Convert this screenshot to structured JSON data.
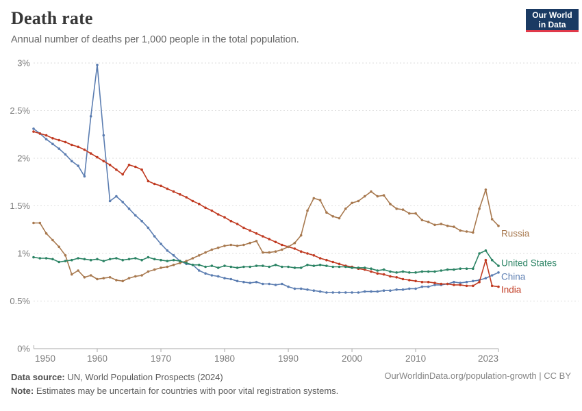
{
  "header": {
    "title": "Death rate",
    "subtitle": "Annual number of deaths per 1,000 people in the total population.",
    "logo_line1": "Our World",
    "logo_line2": "in Data"
  },
  "footer": {
    "source_bold": "Data source:",
    "source_rest": " UN, World Population Prospects (2024)",
    "note_bold": "Note:",
    "note_rest": " Estimates may be uncertain for countries with poor vital registration systems.",
    "credit": "OurWorldinData.org/population-growth | CC BY"
  },
  "colors": {
    "logo_bg": "#1A3A63",
    "logo_accent": "#E0394A",
    "grid": "#DCDCDC",
    "axis": "#A8A8A8",
    "tick_text": "#7C7C7C",
    "title_text": "#373737"
  },
  "chart_data": {
    "type": "line",
    "title": "Death rate",
    "xlabel": "",
    "ylabel": "",
    "x_range": [
      1950,
      2023
    ],
    "x_step": 1,
    "ylim": [
      0,
      3
    ],
    "grid": "horizontal dashed",
    "legend_position": "line-end labels",
    "y_ticks": [
      {
        "v": 0,
        "label": "0%"
      },
      {
        "v": 0.5,
        "label": "0.5%"
      },
      {
        "v": 1,
        "label": "1%"
      },
      {
        "v": 1.5,
        "label": "1.5%"
      },
      {
        "v": 2,
        "label": "2%"
      },
      {
        "v": 2.5,
        "label": "2.5%"
      },
      {
        "v": 3,
        "label": "3%"
      }
    ],
    "x_ticks": [
      {
        "year": 1950,
        "label": "1950"
      },
      {
        "year": 1960,
        "label": "1960"
      },
      {
        "year": 1970,
        "label": "1970"
      },
      {
        "year": 1980,
        "label": "1980"
      },
      {
        "year": 1990,
        "label": "1990"
      },
      {
        "year": 2000,
        "label": "2000"
      },
      {
        "year": 2010,
        "label": "2010"
      },
      {
        "year": 2023,
        "label": "2023"
      }
    ],
    "unit": "percent of population per year",
    "series": [
      {
        "name": "China",
        "color": "#5B7DB1",
        "label_value": 0.755,
        "values": [
          2.31,
          2.26,
          2.2,
          2.15,
          2.1,
          2.04,
          1.97,
          1.92,
          1.81,
          2.44,
          2.98,
          2.24,
          1.55,
          1.6,
          1.54,
          1.47,
          1.4,
          1.34,
          1.27,
          1.18,
          1.1,
          1.03,
          0.98,
          0.92,
          0.89,
          0.88,
          0.82,
          0.79,
          0.77,
          0.76,
          0.74,
          0.73,
          0.71,
          0.7,
          0.69,
          0.7,
          0.68,
          0.68,
          0.67,
          0.68,
          0.65,
          0.63,
          0.63,
          0.62,
          0.61,
          0.6,
          0.59,
          0.59,
          0.59,
          0.59,
          0.59,
          0.59,
          0.6,
          0.6,
          0.6,
          0.61,
          0.61,
          0.62,
          0.62,
          0.63,
          0.63,
          0.65,
          0.65,
          0.67,
          0.67,
          0.68,
          0.7,
          0.69,
          0.7,
          0.71,
          0.72,
          0.74,
          0.77,
          0.8
        ]
      },
      {
        "name": "India",
        "color": "#C03A21",
        "label_value": 0.62,
        "values": [
          2.28,
          2.26,
          2.24,
          2.21,
          2.19,
          2.17,
          2.14,
          2.12,
          2.09,
          2.05,
          2.01,
          1.97,
          1.93,
          1.88,
          1.83,
          1.93,
          1.91,
          1.88,
          1.76,
          1.73,
          1.71,
          1.68,
          1.65,
          1.62,
          1.59,
          1.55,
          1.52,
          1.48,
          1.45,
          1.41,
          1.38,
          1.34,
          1.31,
          1.27,
          1.24,
          1.21,
          1.18,
          1.15,
          1.12,
          1.09,
          1.07,
          1.05,
          1.02,
          1.0,
          0.98,
          0.95,
          0.93,
          0.91,
          0.89,
          0.87,
          0.86,
          0.84,
          0.83,
          0.81,
          0.79,
          0.78,
          0.76,
          0.75,
          0.73,
          0.72,
          0.71,
          0.7,
          0.7,
          0.69,
          0.68,
          0.68,
          0.67,
          0.67,
          0.66,
          0.66,
          0.7,
          0.93,
          0.66,
          0.65
        ]
      },
      {
        "name": "Russia",
        "color": "#A8794F",
        "label_value": 1.21,
        "values": [
          1.32,
          1.32,
          1.21,
          1.14,
          1.07,
          0.98,
          0.78,
          0.82,
          0.75,
          0.77,
          0.73,
          0.74,
          0.75,
          0.72,
          0.71,
          0.74,
          0.76,
          0.77,
          0.81,
          0.83,
          0.85,
          0.86,
          0.88,
          0.9,
          0.92,
          0.95,
          0.98,
          1.01,
          1.04,
          1.06,
          1.08,
          1.09,
          1.08,
          1.09,
          1.11,
          1.13,
          1.01,
          1.01,
          1.02,
          1.04,
          1.07,
          1.11,
          1.19,
          1.45,
          1.58,
          1.56,
          1.43,
          1.39,
          1.37,
          1.47,
          1.53,
          1.55,
          1.6,
          1.65,
          1.6,
          1.61,
          1.52,
          1.47,
          1.46,
          1.42,
          1.42,
          1.35,
          1.33,
          1.3,
          1.31,
          1.29,
          1.28,
          1.24,
          1.23,
          1.22,
          1.47,
          1.67,
          1.36,
          1.29
        ]
      },
      {
        "name": "United States",
        "color": "#2C8465",
        "label_value": 0.9,
        "values": [
          0.96,
          0.95,
          0.95,
          0.94,
          0.91,
          0.92,
          0.93,
          0.95,
          0.94,
          0.93,
          0.94,
          0.92,
          0.94,
          0.95,
          0.93,
          0.94,
          0.95,
          0.93,
          0.96,
          0.94,
          0.93,
          0.92,
          0.93,
          0.92,
          0.9,
          0.88,
          0.88,
          0.86,
          0.87,
          0.85,
          0.87,
          0.86,
          0.85,
          0.86,
          0.86,
          0.87,
          0.87,
          0.86,
          0.88,
          0.86,
          0.86,
          0.85,
          0.85,
          0.88,
          0.87,
          0.88,
          0.87,
          0.86,
          0.86,
          0.86,
          0.85,
          0.85,
          0.85,
          0.84,
          0.82,
          0.83,
          0.81,
          0.8,
          0.81,
          0.8,
          0.8,
          0.81,
          0.81,
          0.81,
          0.82,
          0.83,
          0.83,
          0.84,
          0.84,
          0.84,
          1.0,
          1.03,
          0.93,
          0.87
        ]
      }
    ]
  }
}
